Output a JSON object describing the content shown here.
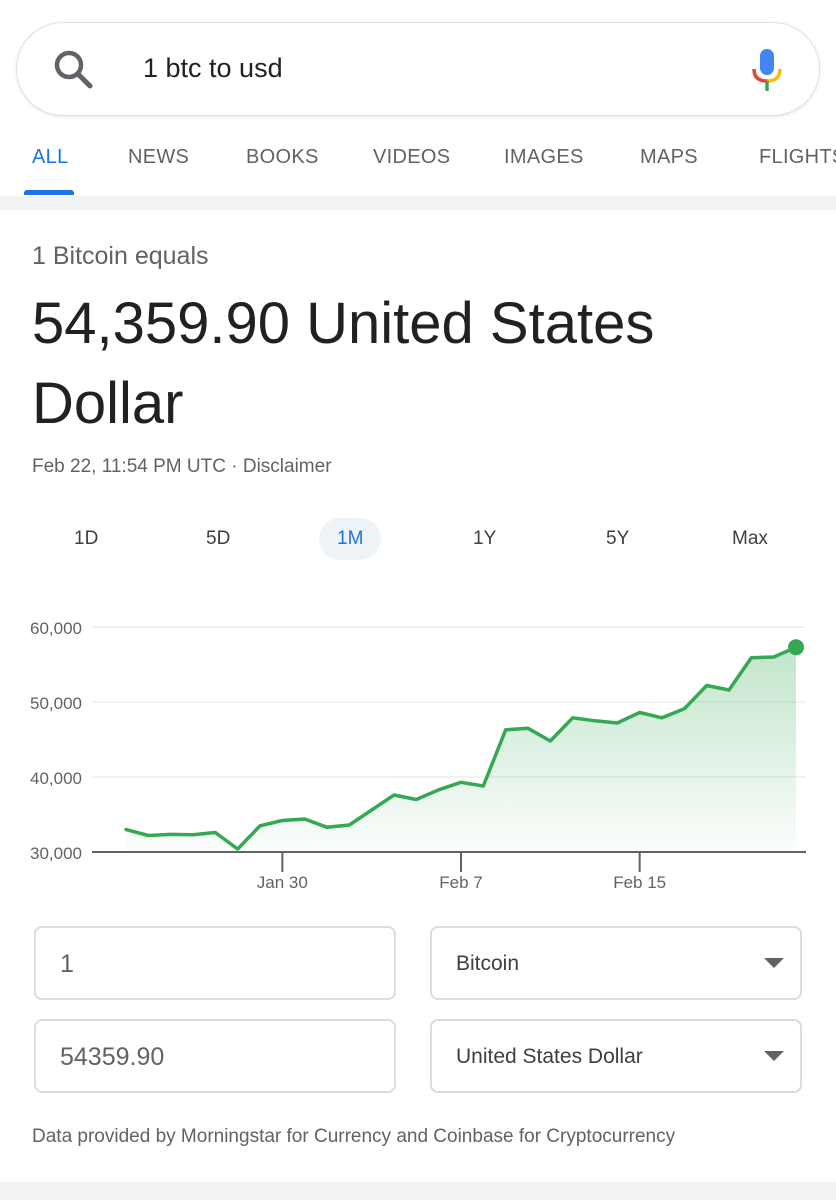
{
  "search": {
    "query": "1 btc to usd",
    "icon": "search-icon",
    "mic_icon": "mic-icon"
  },
  "tabs": [
    {
      "label": "ALL",
      "active": true
    },
    {
      "label": "NEWS"
    },
    {
      "label": "BOOKS"
    },
    {
      "label": "VIDEOS"
    },
    {
      "label": "IMAGES"
    },
    {
      "label": "MAPS"
    },
    {
      "label": "FLIGHTS"
    }
  ],
  "result": {
    "equals_label": "1 Bitcoin equals",
    "value_text": "54,359.90 United States Dollar",
    "timestamp": "Feb 22, 11:54 PM UTC",
    "separator": " · ",
    "disclaimer": "Disclaimer"
  },
  "ranges": [
    {
      "label": "1D"
    },
    {
      "label": "5D"
    },
    {
      "label": "1M",
      "active": true
    },
    {
      "label": "1Y"
    },
    {
      "label": "5Y"
    },
    {
      "label": "Max"
    }
  ],
  "colors": {
    "accent": "#1a73e8",
    "line": "#34a853",
    "fill": "#34a853"
  },
  "chart_data": {
    "type": "area",
    "x": [
      "Jan 23",
      "Jan 24",
      "Jan 25",
      "Jan 26",
      "Jan 27",
      "Jan 28",
      "Jan 29",
      "Jan 30",
      "Jan 31",
      "Feb 1",
      "Feb 2",
      "Feb 3",
      "Feb 4",
      "Feb 5",
      "Feb 6",
      "Feb 7",
      "Feb 8",
      "Feb 9",
      "Feb 10",
      "Feb 11",
      "Feb 12",
      "Feb 13",
      "Feb 14",
      "Feb 15",
      "Feb 16",
      "Feb 17",
      "Feb 18",
      "Feb 19",
      "Feb 20",
      "Feb 21",
      "Feb 22"
    ],
    "series": [
      {
        "values": [
          33000,
          32200,
          32350,
          32300,
          32600,
          30400,
          33500,
          34200,
          34400,
          33300,
          33600,
          35600,
          37600,
          37000,
          38300,
          39300,
          38800,
          46300,
          46500,
          44800,
          47900,
          47500,
          47200,
          48600,
          47900,
          49100,
          52200,
          51600,
          55900,
          56000,
          57300
        ]
      }
    ],
    "ylim": [
      30000,
      60000
    ],
    "y_ticks": [
      "30,000",
      "40,000",
      "50,000",
      "60,000"
    ],
    "y_tick_values": [
      30000,
      40000,
      50000,
      60000
    ],
    "x_ticks": [
      "Jan 30",
      "Feb 7",
      "Feb 15"
    ],
    "grid": true
  },
  "converter": {
    "amount_from": "1",
    "currency_from": "Bitcoin",
    "amount_to": "54359.90",
    "currency_to": "United States Dollar"
  },
  "footer_note": "Data provided by Morningstar for Currency and Coinbase for Cryptocurrency"
}
